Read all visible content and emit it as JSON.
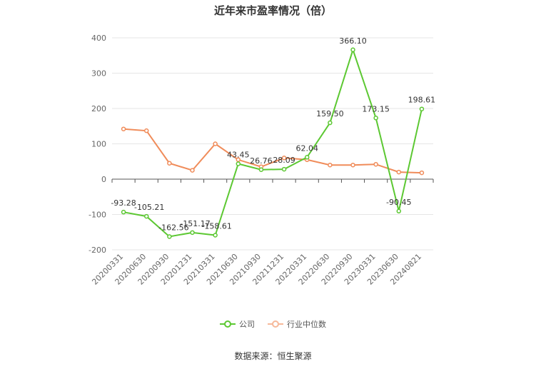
{
  "chart_data": {
    "type": "line",
    "title": "近年来市盈率情况（倍）",
    "categories": [
      "20200331",
      "20200630",
      "20200930",
      "20201231",
      "20210331",
      "20210630",
      "20210930",
      "20211231",
      "20220331",
      "20220630",
      "20220930",
      "20230331",
      "20230630",
      "20240821"
    ],
    "series": [
      {
        "name": "公司",
        "color": "#5cc832",
        "values": [
          -93.28,
          -105.21,
          -162.56,
          -151.17,
          -158.61,
          43.45,
          26.76,
          28.09,
          62.04,
          159.5,
          366.1,
          173.15,
          -90.45,
          198.61
        ],
        "labels": [
          "-93.28",
          "-105.21",
          "-162.56",
          "-151.17",
          "-158.61",
          "43.45",
          "26.76",
          "28.09",
          "62.04",
          "159.50",
          "366.10",
          "173.15",
          "-90.45",
          "198.61"
        ]
      },
      {
        "name": "行业中位数",
        "color": "#f08c5a",
        "values": [
          142,
          137,
          45,
          25,
          100,
          55,
          35,
          60,
          55,
          40,
          40,
          42,
          20,
          18
        ]
      }
    ],
    "ylim": [
      -200,
      400
    ],
    "yticks": [
      -200,
      -100,
      0,
      100,
      200,
      300,
      400
    ],
    "legend_position": "bottom",
    "grid": true
  },
  "source_note": "数据来源：恒生聚源"
}
